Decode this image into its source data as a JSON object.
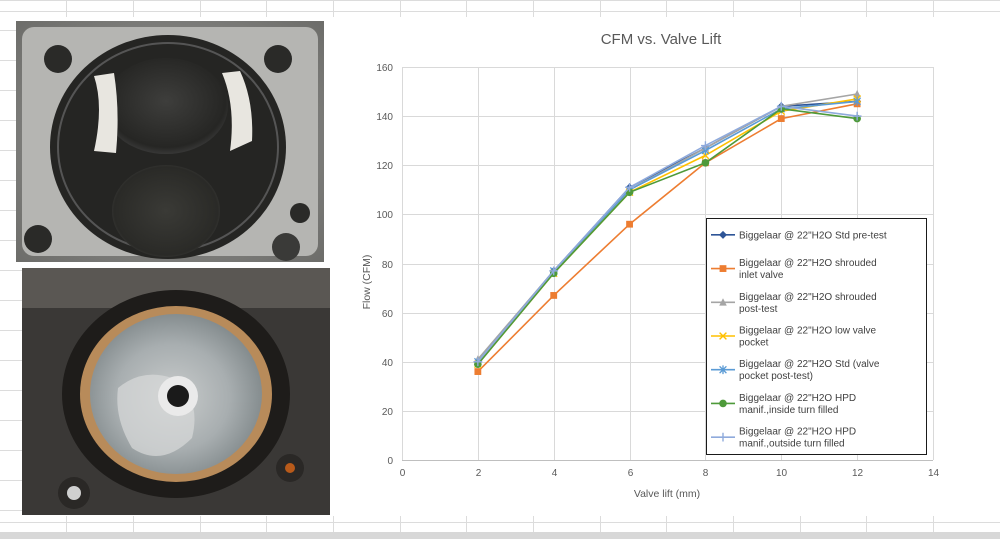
{
  "photos": {
    "top": {
      "icon": "valve-pocket-photo-icon"
    },
    "bottom": {
      "icon": "valve-seat-photo-icon"
    }
  },
  "chart_data": {
    "type": "line",
    "title": "CFM vs. Valve Lift",
    "xlabel": "Valve lift (mm)",
    "ylabel": "Flow (CFM)",
    "xlim": [
      0,
      14
    ],
    "ylim": [
      0,
      160
    ],
    "xticks": [
      0,
      2,
      4,
      6,
      8,
      10,
      12,
      14
    ],
    "yticks": [
      0,
      20,
      40,
      60,
      80,
      100,
      120,
      140,
      160
    ],
    "grid": true,
    "legend_position": "right",
    "x": [
      2,
      4,
      6,
      8,
      10,
      12
    ],
    "series": [
      {
        "name": "Biggelaar @ 22\"H2O Std pre-test",
        "color": "#2e5597",
        "marker": "diamond",
        "values": [
          40,
          77,
          111,
          127,
          144,
          146
        ]
      },
      {
        "name": "Biggelaar @ 22\"H2O shrouded inlet valve",
        "color": "#ed7d31",
        "marker": "square",
        "values": [
          36,
          67,
          96,
          121,
          139,
          145
        ]
      },
      {
        "name": "Biggelaar @ 22\"H2O shrouded post-test",
        "color": "#a5a5a5",
        "marker": "triangle",
        "values": [
          41,
          77,
          110,
          127,
          144,
          149
        ]
      },
      {
        "name": "Biggelaar @ 22\"H2O low valve pocket",
        "color": "#ffc000",
        "marker": "x",
        "values": [
          39,
          76,
          109,
          124,
          142,
          147
        ]
      },
      {
        "name": "Biggelaar @ 22\"H2O Std (valve pocket post-test)",
        "color": "#5b9bd5",
        "marker": "star",
        "values": [
          40,
          77,
          110,
          126,
          143,
          146
        ]
      },
      {
        "name": "Biggelaar @ 22\"H2O HPD manif.,inside turn filled",
        "color": "#4e9a3a",
        "marker": "circle",
        "values": [
          39,
          76,
          109,
          121,
          143,
          139
        ]
      },
      {
        "name": "Biggelaar @ 22\"H2O HPD manif.,outside turn filled",
        "color": "#8faadc",
        "marker": "plus",
        "values": [
          40,
          77,
          111,
          128,
          144,
          140
        ]
      }
    ]
  }
}
